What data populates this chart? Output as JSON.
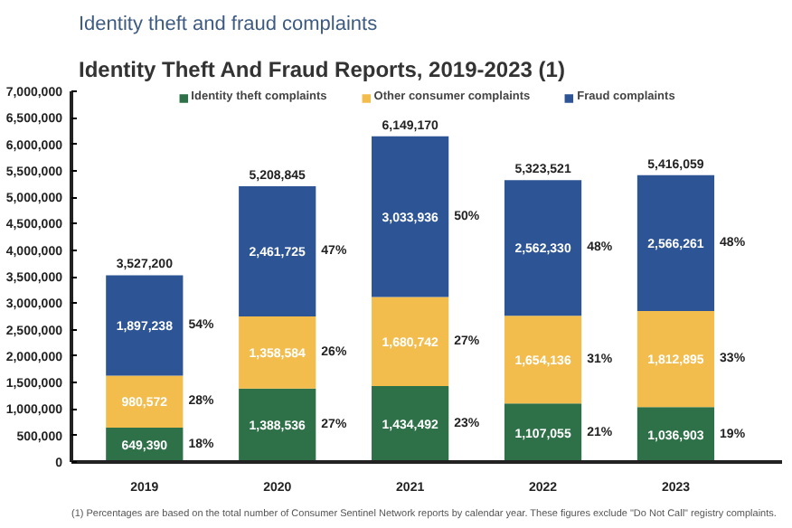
{
  "chart_data": {
    "type": "bar",
    "title": "Identity theft and fraud complaints",
    "subtitle": "Identity Theft And Fraud Reports, 2019-2023 (1)",
    "categories": [
      "2019",
      "2020",
      "2021",
      "2022",
      "2023"
    ],
    "stacked": true,
    "legend": "top",
    "grid": false,
    "ylim": [
      0,
      7000000
    ],
    "yticks": [
      {
        "value": 0,
        "label": "0"
      },
      {
        "value": 500000,
        "label": "500,000"
      },
      {
        "value": 1000000,
        "label": "1,000,000"
      },
      {
        "value": 1500000,
        "label": "1,500,000"
      },
      {
        "value": 2000000,
        "label": "2,000,000"
      },
      {
        "value": 2500000,
        "label": "2,500,000"
      },
      {
        "value": 3000000,
        "label": "3,000,000"
      },
      {
        "value": 3500000,
        "label": "3,500,000"
      },
      {
        "value": 4000000,
        "label": "4,000,000"
      },
      {
        "value": 4500000,
        "label": "4,500,000"
      },
      {
        "value": 5000000,
        "label": "5,000,000"
      },
      {
        "value": 5500000,
        "label": "5,500,000"
      },
      {
        "value": 6000000,
        "label": "6,000,000"
      },
      {
        "value": 6500000,
        "label": "6,500,000"
      },
      {
        "value": 7000000,
        "label": "7,000,000"
      }
    ],
    "series": [
      {
        "name": "Identity theft complaints",
        "color": "#2e7048",
        "values": [
          649390,
          1388536,
          1434492,
          1107055,
          1036903
        ],
        "value_labels": [
          "649,390",
          "1,388,536",
          "1,434,492",
          "1,107,055",
          "1,036,903"
        ]
      },
      {
        "name": "Other consumer complaints",
        "color": "#f3bd4e",
        "values": [
          980572,
          1358584,
          1680742,
          1654136,
          1812895
        ],
        "value_labels": [
          "980,572",
          "1,358,584",
          "1,680,742",
          "1,654,136",
          "1,812,895"
        ]
      },
      {
        "name": "Fraud complaints",
        "color": "#2d5494",
        "values": [
          1897238,
          2461725,
          3033936,
          2562330,
          2566261
        ],
        "value_labels": [
          "1,897,238",
          "2,461,725",
          "3,033,936",
          "2,562,330",
          "2,566,261"
        ]
      }
    ],
    "totals": [
      "3,527,200",
      "5,208,845",
      "6,149,170",
      "5,323,521",
      "5,416,059"
    ],
    "annotations": [
      "(1) Percentages are based on the total number of Consumer Sentinel Network reports by calendar year. These figures exclude \"Do Not Call\" registry complaints.",
      "18%",
      "28%",
      "54%",
      "27%",
      "26%",
      "47%",
      "23%",
      "27%",
      "50%",
      "21%",
      "31%",
      "48%",
      "19%",
      "33%",
      "48%"
    ]
  }
}
